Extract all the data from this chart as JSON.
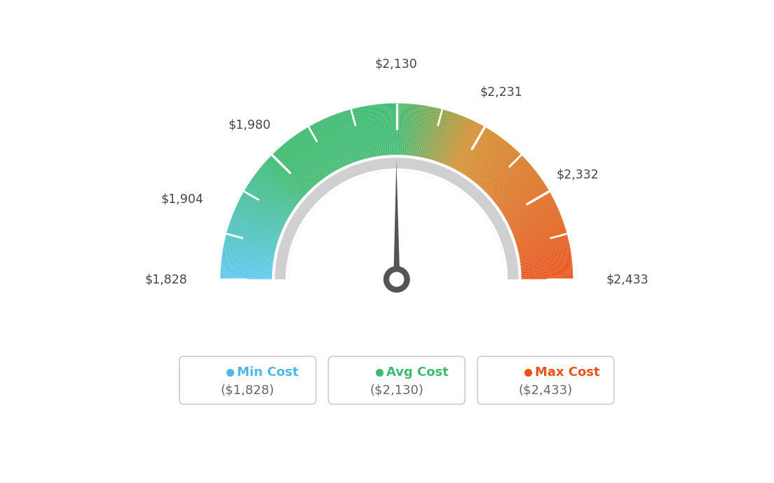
{
  "min_val": 1828,
  "max_val": 2433,
  "avg_val": 2130,
  "tick_labels": [
    "$1,828",
    "$1,904",
    "$1,980",
    "$2,130",
    "$2,231",
    "$2,332",
    "$2,433"
  ],
  "tick_values": [
    1828,
    1904,
    1980,
    2130,
    2231,
    2332,
    2433
  ],
  "legend_items": [
    {
      "label": "Min Cost",
      "value": "($1,828)",
      "color": "#4db8e8"
    },
    {
      "label": "Avg Cost",
      "value": "($2,130)",
      "color": "#3dba6f"
    },
    {
      "label": "Max Cost",
      "value": "($2,433)",
      "color": "#e8521a"
    }
  ],
  "background_color": "#ffffff",
  "needle_color": "#555555",
  "color_stops": [
    [
      0.0,
      "#5bc8f0"
    ],
    [
      0.3,
      "#3dba6f"
    ],
    [
      0.5,
      "#3dba6f"
    ],
    [
      0.7,
      "#c8a020"
    ],
    [
      1.0,
      "#e8521a"
    ]
  ]
}
